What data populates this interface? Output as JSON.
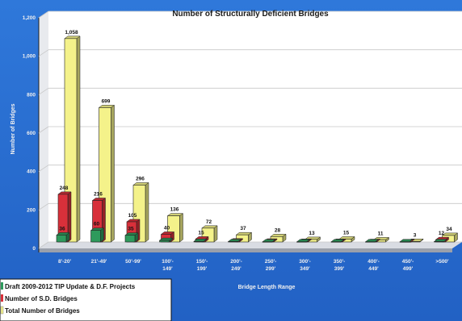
{
  "chart_data": {
    "type": "bar",
    "title": "Number of Structurally Deficient Bridges",
    "xlabel": "Bridge Length Range",
    "ylabel": "Number of Bridges",
    "ylim": [
      0,
      1200
    ],
    "yticks": [
      "0",
      "200",
      "400",
      "600",
      "800",
      "1,000",
      "1,200"
    ],
    "ytick_values": [
      0,
      200,
      400,
      600,
      800,
      1000,
      1200
    ],
    "categories": [
      [
        "8'-20'"
      ],
      [
        "21'-49'"
      ],
      [
        "50'-99'"
      ],
      [
        "100'-",
        "149'"
      ],
      [
        "150'-",
        "199'"
      ],
      [
        "200'-",
        "249'"
      ],
      [
        "250'-",
        "299'"
      ],
      [
        "300'-",
        "349'"
      ],
      [
        "350'-",
        "399'"
      ],
      [
        "400'-",
        "449'"
      ],
      [
        "450'-",
        "499'"
      ],
      [
        ">500'"
      ]
    ],
    "series": [
      {
        "name": "Draft 2009-2012 TIP Update & D.F. Projects",
        "color": "#2e9a5c",
        "values": [
          36,
          60,
          35,
          8,
          3,
          2,
          1,
          1,
          1,
          1,
          1,
          2
        ],
        "labels": [
          "36",
          "60",
          "35",
          "",
          "",
          "",
          "",
          "",
          "",
          "",
          "",
          ""
        ]
      },
      {
        "name": "Number of S.D. Bridges",
        "color": "#d8303a",
        "values": [
          248,
          216,
          105,
          40,
          15,
          5,
          4,
          3,
          3,
          2,
          1,
          12
        ],
        "labels": [
          "248",
          "216",
          "105",
          "40",
          "15",
          "",
          "",
          "",
          "",
          "",
          "",
          "12"
        ]
      },
      {
        "name": "Total Number of Bridges",
        "color": "#f4f28a",
        "values": [
          1058,
          699,
          296,
          136,
          72,
          37,
          28,
          13,
          15,
          11,
          3,
          34
        ],
        "labels": [
          "1,058",
          "699",
          "296",
          "136",
          "72",
          "37",
          "28",
          "13",
          "15",
          "11",
          "3",
          "34"
        ]
      }
    ],
    "grid": true,
    "legend_position": "bottom-left"
  }
}
